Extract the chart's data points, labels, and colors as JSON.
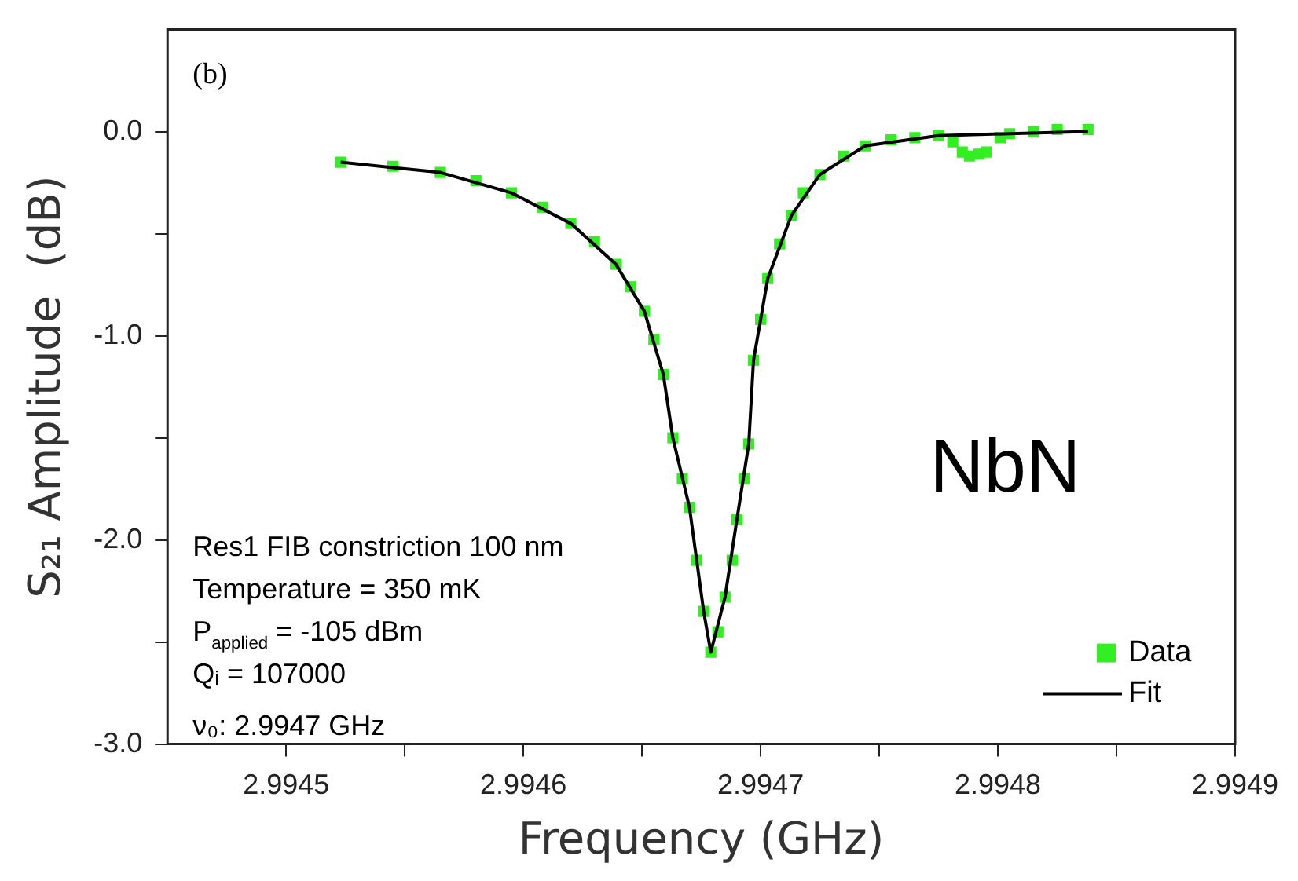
{
  "chart_data": {
    "type": "scatter",
    "xlabel": "Frequency (GHz)",
    "ylabel": "S₂₁ Amplitude  (dB)",
    "xlim": [
      2.99445,
      2.9949
    ],
    "ylim": [
      -3,
      0.5
    ],
    "xticks": [
      {
        "value": 2.9945,
        "label": "2.9945"
      },
      {
        "value": 2.99455,
        "label": null
      },
      {
        "value": 2.9946,
        "label": "2.9946"
      },
      {
        "value": 2.99465,
        "label": null
      },
      {
        "value": 2.9947,
        "label": "2.9947"
      },
      {
        "value": 2.99475,
        "label": null
      },
      {
        "value": 2.9948,
        "label": "2.9948"
      },
      {
        "value": 2.99485,
        "label": null
      },
      {
        "value": 2.9949,
        "label": "2.9949"
      }
    ],
    "yticks": [
      {
        "value": -3,
        "label": "-3.0"
      },
      {
        "value": -2.5,
        "label": null
      },
      {
        "value": -2,
        "label": "-2.0"
      },
      {
        "value": -1.5,
        "label": null
      },
      {
        "value": -1,
        "label": "-1.0"
      },
      {
        "value": -0.5,
        "label": null
      },
      {
        "value": 0,
        "label": "0.0"
      }
    ],
    "grid": false,
    "legend": "bottom right",
    "annotations": [
      "(b)",
      "NbN",
      "Res1 FIB constriction 100 nm",
      "Temperature = 350 mK",
      "P$_{applied}$ = -105 dBm",
      "Qᵢ = 107000",
      "ν₀: 2.9947 GHz"
    ],
    "series": [
      {
        "name": "Data",
        "color": "#33ee22",
        "marker": "square",
        "x": [
          2.994523,
          2.994545,
          2.994565,
          2.99458,
          2.994595,
          2.994608,
          2.99462,
          2.99463,
          2.994639,
          2.994645,
          2.994651,
          2.994655,
          2.994659,
          2.994663,
          2.994667,
          2.99467,
          2.994673,
          2.994676,
          2.994679,
          2.994682,
          2.994685,
          2.994688,
          2.99469,
          2.994693,
          2.994695,
          2.994697,
          2.9947,
          2.994703,
          2.994708,
          2.994713,
          2.994718,
          2.994725,
          2.994735,
          2.994744,
          2.994755,
          2.994765,
          2.994775,
          2.994781,
          2.994785,
          2.994788,
          2.994792,
          2.994795,
          2.994801,
          2.994805,
          2.994815,
          2.994825,
          2.994838
        ],
        "values": [
          -0.15,
          -0.17,
          -0.2,
          -0.24,
          -0.3,
          -0.37,
          -0.45,
          -0.54,
          -0.65,
          -0.76,
          -0.88,
          -1.02,
          -1.19,
          -1.5,
          -1.7,
          -1.84,
          -2.1,
          -2.35,
          -2.55,
          -2.45,
          -2.28,
          -2.1,
          -1.9,
          -1.7,
          -1.53,
          -1.12,
          -0.92,
          -0.72,
          -0.55,
          -0.41,
          -0.3,
          -0.21,
          -0.12,
          -0.07,
          -0.04,
          -0.03,
          -0.02,
          -0.05,
          -0.1,
          -0.12,
          -0.11,
          -0.1,
          -0.03,
          -0.01,
          0,
          0.01,
          0.01
        ]
      },
      {
        "name": "Fit",
        "type": "line",
        "color": "#000000",
        "marker": "none",
        "line_style": "solid",
        "x": [
          2.994523,
          2.994565,
          2.994595,
          2.99462,
          2.994639,
          2.994651,
          2.994659,
          2.994663,
          2.99467,
          2.994676,
          2.994679,
          2.994685,
          2.99469,
          2.994695,
          2.994697,
          2.994703,
          2.994713,
          2.994725,
          2.994744,
          2.994775,
          2.994805,
          2.994838
        ],
        "values": [
          -0.15,
          -0.2,
          -0.3,
          -0.45,
          -0.65,
          -0.88,
          -1.19,
          -1.5,
          -1.84,
          -2.35,
          -2.55,
          -2.28,
          -1.9,
          -1.53,
          -1.12,
          -0.72,
          -0.41,
          -0.21,
          -0.07,
          -0.02,
          -0.01,
          0
        ]
      }
    ]
  }
}
